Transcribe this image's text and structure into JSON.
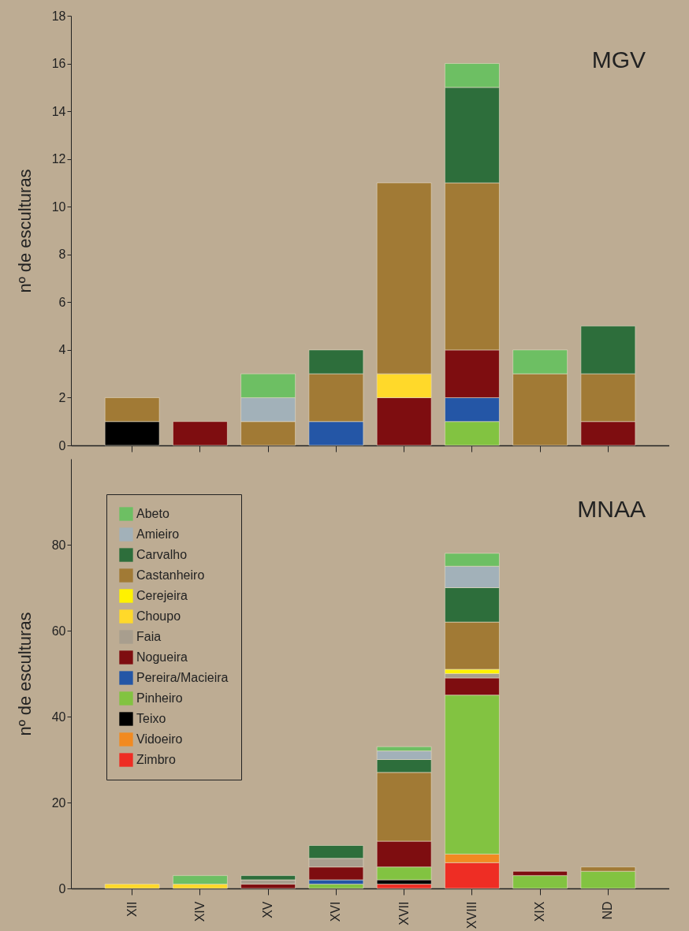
{
  "chart_data": [
    {
      "type": "bar",
      "title": "MGV",
      "ylabel": "nº de esculturas",
      "stacked": true,
      "categories": [
        null,
        null,
        null,
        null,
        null,
        null,
        null,
        null
      ],
      "ylim": [
        0,
        18
      ],
      "yticks": [
        0,
        2,
        4,
        6,
        8,
        10,
        12,
        14,
        16,
        18
      ],
      "series": [
        {
          "color": "#000000",
          "values": [
            1,
            null,
            null,
            null,
            null,
            null,
            null,
            null
          ]
        },
        {
          "color": "#82c341",
          "values": [
            null,
            null,
            null,
            null,
            null,
            1,
            null,
            null
          ]
        },
        {
          "color": "#2456a6",
          "values": [
            null,
            null,
            null,
            1,
            null,
            1,
            null,
            null
          ]
        },
        {
          "color": "#7e0d10",
          "values": [
            null,
            1,
            null,
            null,
            2,
            2,
            null,
            1
          ]
        },
        {
          "color": "#ffd92a",
          "values": [
            null,
            null,
            null,
            null,
            1,
            null,
            null,
            null
          ]
        },
        {
          "color": "#a17a35",
          "values": [
            1,
            null,
            1,
            2,
            8,
            7,
            3,
            2
          ]
        },
        {
          "color": "#2d6e3b",
          "values": [
            null,
            null,
            null,
            1,
            null,
            4,
            null,
            2
          ]
        },
        {
          "color": "#a2b1b9",
          "values": [
            null,
            null,
            1,
            null,
            null,
            null,
            null,
            null
          ]
        },
        {
          "color": "#6dbf63",
          "values": [
            null,
            null,
            1,
            null,
            null,
            1,
            1,
            null
          ]
        }
      ]
    },
    {
      "type": "bar",
      "title": "MNAA",
      "ylabel": "nº de esculturas",
      "stacked": true,
      "legend": "top left",
      "categories": [
        "XII",
        "XIV",
        "XV",
        "XVI",
        "XVII",
        "XVIII",
        "XIX",
        "ND"
      ],
      "ylim": [
        0,
        100
      ],
      "yticks": [
        0,
        20,
        40,
        60,
        80
      ],
      "series": [
        {
          "name": "Zimbro",
          "color": "#ee2d24",
          "values": [
            null,
            null,
            null,
            null,
            1,
            6,
            null,
            null
          ]
        },
        {
          "name": "Vidoeiro",
          "color": "#f18a21",
          "values": [
            null,
            null,
            null,
            null,
            null,
            2,
            null,
            null
          ]
        },
        {
          "name": "Teixo",
          "color": "#000000",
          "values": [
            null,
            null,
            null,
            null,
            1,
            null,
            null,
            null
          ]
        },
        {
          "name": "Pinheiro",
          "color": "#82c341",
          "values": [
            null,
            null,
            null,
            1,
            3,
            37,
            3,
            4
          ]
        },
        {
          "name": "Pereira/Macieira",
          "color": "#2456a6",
          "values": [
            null,
            null,
            null,
            1,
            null,
            null,
            null,
            null
          ]
        },
        {
          "name": "Nogueira",
          "color": "#7e0d10",
          "values": [
            null,
            null,
            1,
            3,
            6,
            4,
            1,
            null
          ]
        },
        {
          "name": "Faia",
          "color": "#a89e8e",
          "values": [
            null,
            null,
            1,
            2,
            null,
            1,
            null,
            null
          ]
        },
        {
          "name": "Choupo",
          "color": "#ffd92a",
          "values": [
            1,
            1,
            null,
            null,
            null,
            null,
            null,
            null
          ]
        },
        {
          "name": "Cerejeira",
          "color": "#fff200",
          "values": [
            null,
            null,
            null,
            null,
            null,
            1,
            null,
            null
          ]
        },
        {
          "name": "Castanheiro",
          "color": "#a17a35",
          "values": [
            null,
            null,
            null,
            null,
            16,
            11,
            null,
            1
          ]
        },
        {
          "name": "Carvalho",
          "color": "#2d6e3b",
          "values": [
            null,
            null,
            1,
            3,
            3,
            8,
            null,
            null
          ]
        },
        {
          "name": "Amieiro",
          "color": "#a2b1b9",
          "values": [
            null,
            null,
            null,
            null,
            2,
            5,
            null,
            null
          ]
        },
        {
          "name": "Abeto",
          "color": "#6dbf63",
          "values": [
            null,
            2,
            null,
            null,
            1,
            3,
            null,
            null
          ]
        }
      ]
    }
  ]
}
